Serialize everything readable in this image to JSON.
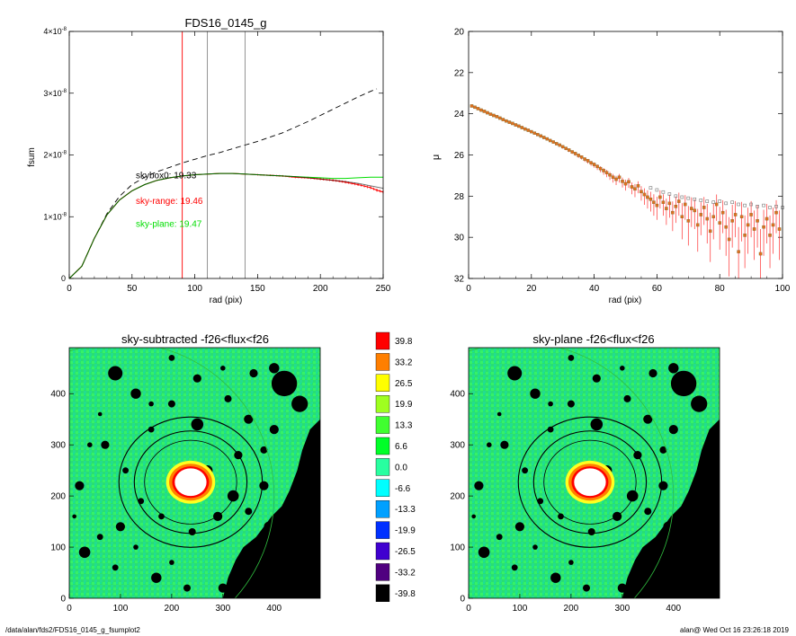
{
  "footer": {
    "path": "/data/alan/fds2/FDS16_0145_g_fsumplot2",
    "stamp": "alan@  Wed Oct 16 23:26:18 2019"
  },
  "colors": {
    "cumulative_raw": "#000000",
    "skybox0": "#000000",
    "sky_range": "#ff0000",
    "sky_plane": "#00dd00",
    "marker_line_red": "#ff0000",
    "marker_line_gray": "#888888"
  },
  "chart_data": [
    {
      "id": "fsum",
      "type": "line",
      "title": "FDS16_0145_g",
      "xlabel": "rad (pix)",
      "ylabel": "fsum",
      "xlim": [
        0,
        250
      ],
      "ylim": [
        0,
        4e-08
      ],
      "xticks": [
        "0",
        "50",
        "100",
        "150",
        "200",
        "250"
      ],
      "yticks": [
        {
          "value": 0,
          "label": "0"
        },
        {
          "value": 1e-08,
          "label": "1×10",
          "exp": "-8"
        },
        {
          "value": 2e-08,
          "label": "2×10",
          "exp": "-8"
        },
        {
          "value": 3e-08,
          "label": "3×10",
          "exp": "-8"
        },
        {
          "value": 4e-08,
          "label": "4×10",
          "exp": "-8"
        }
      ],
      "vlines": [
        {
          "x": 90,
          "color": "red"
        },
        {
          "x": 110,
          "color": "gray"
        },
        {
          "x": 140,
          "color": "gray"
        }
      ],
      "annotations": [
        {
          "text": "skybox0: 19.33",
          "color": "black",
          "x": 53,
          "y": 1.62e-08
        },
        {
          "text": "sky-range: 19.46",
          "color": "red",
          "x": 53,
          "y": 1.21e-08
        },
        {
          "text": "sky-plane: 19.47",
          "color": "green",
          "x": 53,
          "y": 8.4e-09
        }
      ],
      "series": [
        {
          "style": "dashed",
          "color": "black",
          "x": [
            0,
            10,
            20,
            30,
            40,
            50,
            60,
            70,
            80,
            90,
            100,
            110,
            120,
            130,
            140,
            150,
            160,
            170,
            180,
            190,
            200,
            210,
            220,
            230,
            240,
            245
          ],
          "y": [
            0,
            2e-09,
            6.5e-09,
            1.05e-08,
            1.33e-08,
            1.52e-08,
            1.64e-08,
            1.73e-08,
            1.8e-08,
            1.87e-08,
            1.93e-08,
            1.99e-08,
            2.04e-08,
            2.1e-08,
            2.16e-08,
            2.22e-08,
            2.29e-08,
            2.36e-08,
            2.45e-08,
            2.54e-08,
            2.64e-08,
            2.74e-08,
            2.84e-08,
            2.94e-08,
            3.03e-08,
            3.07e-08
          ]
        },
        {
          "style": "errorbars",
          "color": "red",
          "x": [
            0,
            10,
            20,
            30,
            40,
            50,
            60,
            70,
            80,
            90,
            100,
            110,
            120,
            130,
            140,
            150,
            160,
            170,
            180,
            190,
            200,
            210,
            220,
            230,
            240,
            245,
            250
          ],
          "y": [
            0,
            2e-09,
            6.5e-09,
            1.03e-08,
            1.27e-08,
            1.42e-08,
            1.52e-08,
            1.59e-08,
            1.63e-08,
            1.66e-08,
            1.68e-08,
            1.69e-08,
            1.7e-08,
            1.7e-08,
            1.69e-08,
            1.68e-08,
            1.67e-08,
            1.66e-08,
            1.64e-08,
            1.63e-08,
            1.61e-08,
            1.59e-08,
            1.56e-08,
            1.52e-08,
            1.47e-08,
            1.43e-08,
            1.4e-08
          ]
        },
        {
          "style": "solid",
          "color": "green",
          "x": [
            0,
            10,
            20,
            30,
            40,
            50,
            60,
            70,
            80,
            90,
            100,
            110,
            120,
            130,
            140,
            150,
            160,
            170,
            180,
            190,
            200,
            210,
            220,
            230,
            240,
            250
          ],
          "y": [
            0,
            2e-09,
            6.5e-09,
            1.03e-08,
            1.27e-08,
            1.42e-08,
            1.52e-08,
            1.59e-08,
            1.63e-08,
            1.66e-08,
            1.68e-08,
            1.69e-08,
            1.7e-08,
            1.7e-08,
            1.69e-08,
            1.68e-08,
            1.67e-08,
            1.66e-08,
            1.65e-08,
            1.64e-08,
            1.63e-08,
            1.62e-08,
            1.62e-08,
            1.63e-08,
            1.64e-08,
            1.64e-08
          ]
        },
        {
          "style": "solid",
          "color": "black",
          "x": [
            0,
            10,
            20,
            30,
            40,
            50,
            60,
            70,
            80,
            90,
            100,
            110,
            120,
            130,
            140,
            150,
            160,
            170,
            180,
            190,
            200,
            210,
            220,
            230,
            240,
            250
          ],
          "y": [
            0,
            2e-09,
            6.5e-09,
            1.03e-08,
            1.27e-08,
            1.42e-08,
            1.52e-08,
            1.59e-08,
            1.63e-08,
            1.66e-08,
            1.68e-08,
            1.69e-08,
            1.7e-08,
            1.7e-08,
            1.69e-08,
            1.68e-08,
            1.67e-08,
            1.66e-08,
            1.65e-08,
            1.63e-08,
            1.61e-08,
            1.59e-08,
            1.57e-08,
            1.54e-08,
            1.5e-08,
            1.46e-08
          ],
          "opacity": 0.55
        }
      ]
    },
    {
      "id": "mu",
      "type": "scatter",
      "title": "",
      "xlabel": "rad (pix)",
      "ylabel": "μ",
      "xlim": [
        0,
        100
      ],
      "ylim": [
        32,
        20
      ],
      "xticks": [
        "0",
        "20",
        "40",
        "60",
        "80",
        "100"
      ],
      "yticks": [
        "20",
        "22",
        "24",
        "26",
        "28",
        "30",
        "32"
      ],
      "series": [
        {
          "style": "errorbars-squares",
          "color": "orange",
          "x": [
            1,
            2,
            3,
            4,
            5,
            6,
            7,
            8,
            9,
            10,
            11,
            12,
            13,
            14,
            15,
            16,
            17,
            18,
            19,
            20,
            21,
            22,
            23,
            24,
            25,
            26,
            27,
            28,
            29,
            30,
            31,
            32,
            33,
            34,
            35,
            36,
            37,
            38,
            39,
            40,
            41,
            42,
            43,
            44,
            45,
            46,
            47,
            48,
            49,
            50,
            51,
            52,
            53,
            54,
            55,
            56,
            57,
            58,
            59,
            60,
            61,
            62,
            63,
            64,
            65,
            66,
            67,
            68,
            69,
            70,
            71,
            72,
            73,
            74,
            75,
            76,
            77,
            78,
            79,
            80,
            81,
            82,
            83,
            84,
            85,
            86,
            87,
            88,
            89,
            90,
            91,
            92,
            93,
            94,
            95,
            96,
            97,
            98,
            99
          ],
          "y": [
            23.62,
            23.68,
            23.75,
            23.82,
            23.88,
            23.95,
            24.02,
            24.08,
            24.14,
            24.21,
            24.28,
            24.35,
            24.41,
            24.47,
            24.54,
            24.6,
            24.67,
            24.74,
            24.8,
            24.87,
            24.94,
            25.01,
            25.08,
            25.15,
            25.22,
            25.3,
            25.37,
            25.45,
            25.52,
            25.6,
            25.68,
            25.76,
            25.85,
            25.93,
            26.02,
            26.1,
            26.2,
            26.28,
            26.38,
            26.46,
            26.56,
            26.66,
            26.76,
            26.86,
            26.97,
            27.08,
            27.18,
            27.08,
            27.28,
            27.4,
            27.3,
            27.55,
            27.65,
            27.5,
            27.78,
            27.92,
            28.05,
            28.15,
            28.3,
            28.45,
            28.05,
            28.3,
            28.6,
            28.35,
            28.8,
            28.5,
            28.25,
            29.0,
            28.4,
            29.2,
            28.6,
            28.7,
            29.4,
            28.9,
            28.55,
            29.1,
            29.7,
            29.0,
            28.4,
            29.3,
            28.8,
            29.5,
            30.1,
            29.2,
            28.9,
            30.7,
            29.0,
            29.9,
            29.4,
            28.9,
            29.6,
            29.2,
            30.8,
            29.5,
            29.1,
            29.9,
            29.4,
            28.8,
            29.6
          ],
          "err": [
            0.05,
            0.05,
            0.05,
            0.05,
            0.05,
            0.05,
            0.05,
            0.05,
            0.05,
            0.05,
            0.05,
            0.05,
            0.05,
            0.05,
            0.05,
            0.05,
            0.05,
            0.06,
            0.06,
            0.06,
            0.06,
            0.06,
            0.07,
            0.07,
            0.07,
            0.07,
            0.08,
            0.08,
            0.08,
            0.09,
            0.09,
            0.1,
            0.1,
            0.11,
            0.12,
            0.12,
            0.13,
            0.14,
            0.15,
            0.16,
            0.17,
            0.18,
            0.2,
            0.22,
            0.24,
            0.26,
            0.28,
            0.26,
            0.3,
            0.33,
            0.3,
            0.36,
            0.4,
            0.36,
            0.44,
            0.5,
            0.55,
            0.6,
            0.65,
            0.7,
            0.55,
            0.65,
            0.8,
            0.7,
            0.9,
            0.8,
            0.7,
            1.1,
            0.75,
            1.2,
            0.9,
            0.9,
            1.3,
            1.0,
            0.85,
            1.2,
            1.5,
            1.1,
            0.8,
            1.3,
            1.0,
            1.4,
            1.8,
            1.3,
            1.1,
            2.0,
            1.2,
            1.6,
            1.4,
            1.1,
            1.5,
            1.3,
            2.0,
            1.4,
            1.2,
            1.6,
            1.4,
            1.0,
            1.5
          ]
        },
        {
          "style": "open-squares",
          "color": "gray",
          "x": [
            58,
            60,
            62,
            64,
            66,
            68,
            70,
            72,
            74,
            76,
            78,
            80,
            82,
            84,
            86,
            88,
            90,
            92,
            94,
            96,
            98,
            100
          ],
          "y": [
            27.6,
            27.7,
            27.8,
            27.9,
            28.0,
            28.05,
            28.1,
            28.15,
            28.2,
            28.25,
            28.3,
            28.25,
            28.35,
            28.3,
            28.4,
            28.45,
            28.4,
            28.5,
            28.45,
            28.55,
            28.5,
            28.55
          ]
        }
      ]
    },
    {
      "id": "img-sky-subtracted",
      "type": "heatmap",
      "title": "sky-subtracted -f26<flux<f26",
      "xlim": [
        0,
        490
      ],
      "ylim": [
        0,
        490
      ],
      "xticks": [
        "0",
        "100",
        "200",
        "300",
        "400"
      ],
      "yticks": [
        "0",
        "100",
        "200",
        "300",
        "400"
      ],
      "center": [
        237,
        227
      ],
      "rings": [
        90,
        110,
        140
      ],
      "big_circle": {
        "cx": 100,
        "cy": 200,
        "r": 300
      }
    },
    {
      "id": "colorbar",
      "type": "heatmap",
      "labels": [
        "39.8",
        "33.2",
        "26.5",
        "19.9",
        "13.3",
        "6.6",
        "0.0",
        "-6.6",
        "-13.3",
        "-19.9",
        "-26.5",
        "-33.2",
        "-39.8"
      ],
      "colors": [
        "#ff0000",
        "#ff7f00",
        "#ffff00",
        "#9fff1f",
        "#40ff30",
        "#00ff28",
        "#28ffa0",
        "#00ffff",
        "#00a0ff",
        "#0030ff",
        "#4000d0",
        "#500080",
        "#000000"
      ]
    },
    {
      "id": "img-sky-plane",
      "type": "heatmap",
      "title": "sky-plane -f26<flux<f26",
      "xlim": [
        0,
        490
      ],
      "ylim": [
        0,
        490
      ],
      "xticks": [
        "0",
        "100",
        "200",
        "300",
        "400"
      ],
      "yticks": [
        "0",
        "100",
        "200",
        "300",
        "400"
      ],
      "center": [
        237,
        227
      ],
      "rings": [
        90,
        110,
        140
      ],
      "big_circle": {
        "cx": 100,
        "cy": 200,
        "r": 300
      }
    }
  ]
}
